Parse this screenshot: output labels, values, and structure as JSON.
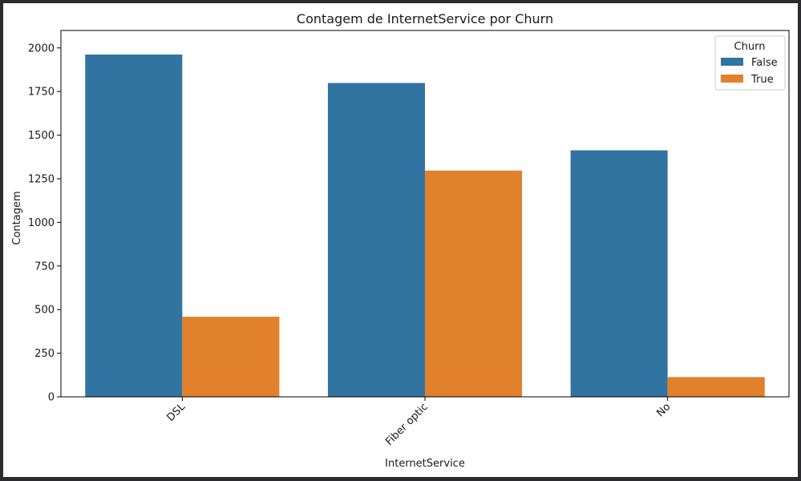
{
  "chart_data": {
    "type": "bar",
    "title": "Contagem de InternetService por Churn",
    "xlabel": "InternetService",
    "ylabel": "Contagem",
    "categories": [
      "DSL",
      "Fiber optic",
      "No"
    ],
    "series": [
      {
        "name": "False",
        "color": "#3274a1",
        "values": [
          1962,
          1799,
          1413
        ]
      },
      {
        "name": "True",
        "color": "#e1812c",
        "values": [
          459,
          1297,
          113
        ]
      }
    ],
    "ylim": [
      0,
      2100
    ],
    "yticks": [
      0,
      250,
      500,
      750,
      1000,
      1250,
      1500,
      1750,
      2000
    ],
    "grid": false,
    "legend": {
      "title": "Churn",
      "position": "top-right"
    }
  }
}
